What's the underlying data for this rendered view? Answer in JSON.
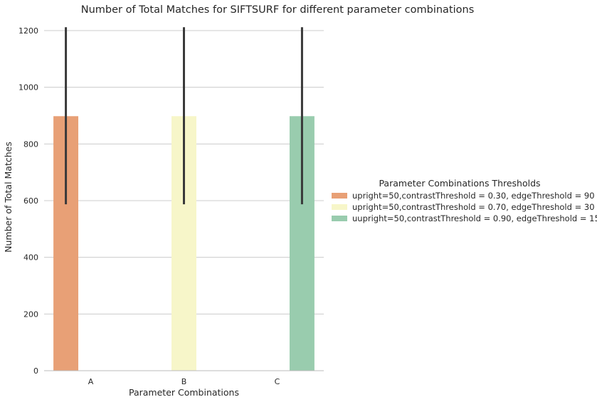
{
  "chart_data": {
    "type": "bar",
    "title": "Number of Total Matches for SIFTSURF for different parameter combinations",
    "xlabel": "Parameter Combinations",
    "ylabel": "Number of Total Matches",
    "categories": [
      "A",
      "B",
      "C"
    ],
    "ylim": [
      0,
      1215
    ],
    "yticks": [
      0,
      200,
      400,
      600,
      800,
      1000,
      1200
    ],
    "grid": "horizontal",
    "legend": {
      "title": "Parameter Combinations Thresholds",
      "placement": "right"
    },
    "series": [
      {
        "name": "upright=50,contrastThreshold = 0.30, edgeThreshold = 90",
        "color": "#e8a076",
        "values": [
          898,
          null,
          null
        ],
        "error_low": [
          587,
          null,
          null
        ],
        "error_high": [
          1212,
          null,
          null
        ]
      },
      {
        "name": "upright=50,contrastThreshold = 0.70, edgeThreshold = 30",
        "color": "#f7f6c9",
        "values": [
          null,
          898,
          null
        ],
        "error_low": [
          null,
          587,
          null
        ],
        "error_high": [
          null,
          1212,
          null
        ]
      },
      {
        "name": "uupright=50,contrastThreshold = 0.90, edgeThreshold = 15",
        "color": "#99ccae",
        "values": [
          null,
          null,
          898
        ],
        "error_low": [
          null,
          null,
          587
        ],
        "error_high": [
          null,
          null,
          1212
        ]
      }
    ],
    "error_color": "#3a3a3a"
  }
}
